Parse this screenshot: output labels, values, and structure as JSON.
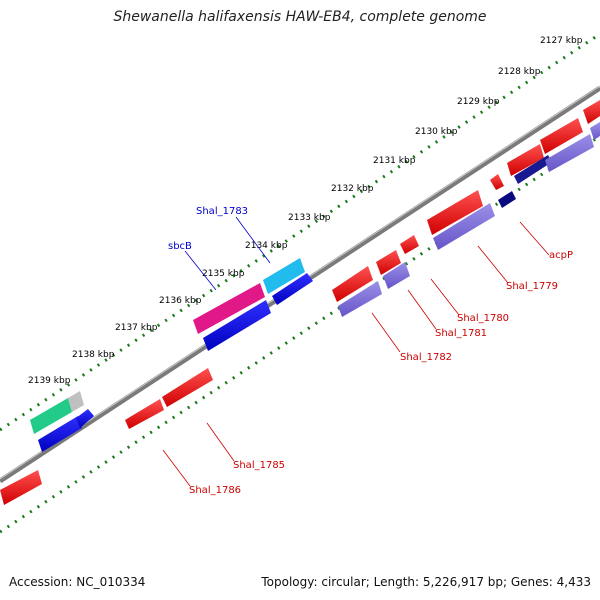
{
  "title": "Shewanella halifaxensis HAW-EB4, complete genome",
  "footer": {
    "accession": "Accession: NC_010334",
    "summary": "Topology: circular; Length: 5,226,917 bp; Genes: 4,433"
  },
  "ticks": [
    "2127 kbp",
    "2128 kbp",
    "2129 kbp",
    "2130 kbp",
    "2131 kbp",
    "2132 kbp",
    "2133 kbp",
    "2134 kbp",
    "2135 kbp",
    "2136 kbp",
    "2137 kbp",
    "2138 kbp",
    "2139 kbp"
  ],
  "genes_forward": [
    "Shal_1783",
    "sbcB"
  ],
  "genes_reverse": [
    "acpP",
    "Shal_1779",
    "Shal_1780",
    "Shal_1781",
    "Shal_1782",
    "Shal_1785",
    "Shal_1786"
  ],
  "colors": {
    "forward_label": "#0000cc",
    "reverse_label": "#cc0000",
    "tick": "#1a7a1a",
    "backbone": "#808080"
  }
}
